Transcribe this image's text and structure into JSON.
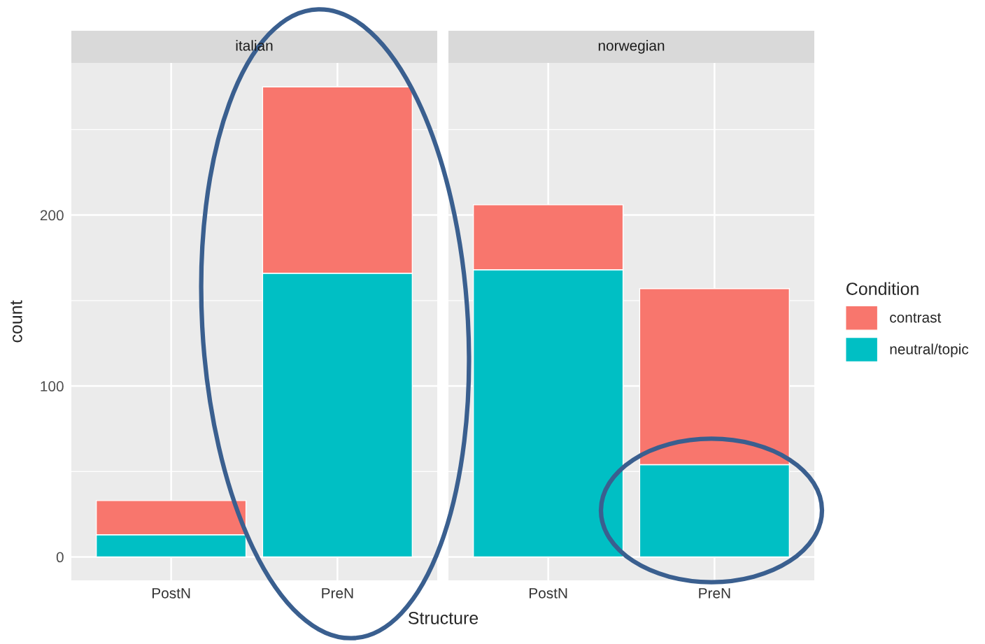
{
  "chart_data": [
    {
      "type": "bar",
      "title": "italian",
      "xlabel": "Structure",
      "ylabel": "count",
      "categories": [
        "PostN",
        "PreN"
      ],
      "stacked": true,
      "series": [
        {
          "color": "#00bfc4",
          "values": [
            13,
            166
          ]
        },
        {
          "color": "#f8766d",
          "values": [
            20,
            109
          ]
        }
      ],
      "ylim": [
        -13.7,
        289
      ],
      "yticks": [
        0,
        100,
        200
      ],
      "grid": true
    },
    {
      "type": "bar",
      "title": "norwegian",
      "categories": [
        "PostN",
        "PreN"
      ],
      "stacked": true,
      "legend_title": "Condition",
      "series": [
        {
          "name": "neutral/topic",
          "color": "#00bfc4",
          "values": [
            168,
            54
          ]
        },
        {
          "name": "contrast",
          "color": "#f8766d",
          "values": [
            38,
            103
          ]
        }
      ],
      "ylim": [
        -13.7,
        289
      ],
      "yticks": [
        0,
        100,
        200
      ],
      "grid": true,
      "legend": "right",
      "tick_labels": "x"
    }
  ]
}
